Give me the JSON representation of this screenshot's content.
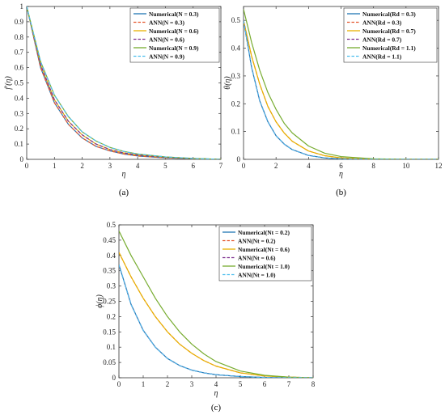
{
  "chart_data": [
    {
      "panel": "(a)",
      "type": "line",
      "xlabel": "η",
      "ylabel": "f′(η)",
      "xlim": [
        0,
        7
      ],
      "ylim": [
        0,
        1
      ],
      "xticks": [
        0,
        1,
        2,
        3,
        4,
        5,
        6,
        7
      ],
      "yticks": [
        0,
        0.1,
        0.2,
        0.3,
        0.4,
        0.5,
        0.6,
        0.7,
        0.8,
        0.9,
        1
      ],
      "legend_position": "top-right",
      "x": [
        0,
        0.5,
        1,
        1.5,
        2,
        2.5,
        3,
        3.5,
        4,
        5,
        6,
        7
      ],
      "series": [
        {
          "name": "Numerical(N = 0.3)",
          "color": "#1f77b4",
          "style": "solid",
          "values": [
            1.0,
            0.6,
            0.37,
            0.23,
            0.14,
            0.085,
            0.055,
            0.035,
            0.022,
            0.01,
            0.004,
            0.0
          ]
        },
        {
          "name": "ANN(N = 0.3)",
          "color": "#e4572e",
          "style": "dashed",
          "values": [
            1.0,
            0.6,
            0.37,
            0.23,
            0.14,
            0.085,
            0.055,
            0.035,
            0.022,
            0.01,
            0.004,
            0.0
          ]
        },
        {
          "name": "Numerical(N = 0.6)",
          "color": "#e8b100",
          "style": "solid",
          "values": [
            1.0,
            0.62,
            0.39,
            0.25,
            0.16,
            0.1,
            0.064,
            0.042,
            0.028,
            0.013,
            0.005,
            0.0
          ]
        },
        {
          "name": "ANN(N = 0.6)",
          "color": "#7e2f8e",
          "style": "dashed",
          "values": [
            1.0,
            0.62,
            0.39,
            0.25,
            0.16,
            0.1,
            0.064,
            0.042,
            0.028,
            0.013,
            0.005,
            0.0
          ]
        },
        {
          "name": "Numerical(N = 0.9)",
          "color": "#77ac30",
          "style": "solid",
          "values": [
            1.0,
            0.64,
            0.42,
            0.28,
            0.18,
            0.12,
            0.078,
            0.052,
            0.035,
            0.016,
            0.006,
            0.0
          ]
        },
        {
          "name": "ANN(N = 0.9)",
          "color": "#4dbeee",
          "style": "dashed",
          "values": [
            1.0,
            0.64,
            0.42,
            0.28,
            0.18,
            0.12,
            0.078,
            0.052,
            0.035,
            0.016,
            0.006,
            0.0
          ]
        }
      ]
    },
    {
      "panel": "(b)",
      "type": "line",
      "xlabel": "η",
      "ylabel": "θ(η)",
      "xlim": [
        0,
        12
      ],
      "ylim": [
        0,
        0.55
      ],
      "xticks": [
        0,
        2,
        4,
        6,
        8,
        10,
        12
      ],
      "yticks": [
        0,
        0.1,
        0.2,
        0.3,
        0.4,
        0.5
      ],
      "legend_position": "top-right",
      "x": [
        0,
        0.5,
        1,
        1.5,
        2,
        2.5,
        3,
        4,
        5,
        6,
        8,
        10,
        12
      ],
      "series": [
        {
          "name": "Numerical(Rd = 0.3)",
          "color": "#1f77b4",
          "style": "solid",
          "values": [
            0.5,
            0.33,
            0.21,
            0.135,
            0.085,
            0.055,
            0.035,
            0.014,
            0.005,
            0.002,
            0.0,
            0.0,
            0.0
          ]
        },
        {
          "name": "ANN(Rd = 0.3)",
          "color": "#e4572e",
          "style": "dashed",
          "values": [
            0.5,
            0.37,
            0.27,
            0.19,
            0.135,
            0.095,
            0.065,
            0.03,
            0.013,
            0.005,
            0.001,
            0.0,
            0.0
          ]
        },
        {
          "name": "Numerical(Rd = 0.7)",
          "color": "#e8b100",
          "style": "solid",
          "values": [
            0.5,
            0.37,
            0.27,
            0.19,
            0.135,
            0.095,
            0.065,
            0.03,
            0.013,
            0.005,
            0.001,
            0.0,
            0.0
          ]
        },
        {
          "name": "ANN(Rd = 0.7)",
          "color": "#7e2f8e",
          "style": "dashed",
          "values": [
            0.5,
            0.33,
            0.21,
            0.135,
            0.085,
            0.055,
            0.035,
            0.014,
            0.005,
            0.002,
            0.0,
            0.0,
            0.0
          ]
        },
        {
          "name": "Numerical(Rd = 1.1)",
          "color": "#77ac30",
          "style": "solid",
          "values": [
            0.54,
            0.42,
            0.32,
            0.24,
            0.18,
            0.13,
            0.095,
            0.048,
            0.022,
            0.01,
            0.002,
            0.0,
            0.0
          ]
        },
        {
          "name": "ANN(Rd = 1.1)",
          "color": "#4dbeee",
          "style": "dashed",
          "values": [
            0.5,
            0.33,
            0.21,
            0.135,
            0.085,
            0.055,
            0.035,
            0.014,
            0.005,
            0.002,
            0.0,
            0.0,
            0.0
          ]
        }
      ]
    },
    {
      "panel": "(c)",
      "type": "line",
      "xlabel": "η",
      "ylabel": "ϕ(η)",
      "xlim": [
        0,
        8
      ],
      "ylim": [
        0,
        0.5
      ],
      "xticks": [
        0,
        1,
        2,
        3,
        4,
        5,
        6,
        7,
        8
      ],
      "yticks": [
        0,
        0.05,
        0.1,
        0.15,
        0.2,
        0.25,
        0.3,
        0.35,
        0.4,
        0.45,
        0.5
      ],
      "legend_position": "top-right",
      "x": [
        0,
        0.5,
        1,
        1.5,
        2,
        2.5,
        3,
        3.5,
        4,
        5,
        6,
        7,
        8
      ],
      "series": [
        {
          "name": "Numerical(Nt = 0.2)",
          "color": "#1f77b4",
          "style": "solid",
          "values": [
            0.37,
            0.24,
            0.155,
            0.1,
            0.063,
            0.04,
            0.025,
            0.016,
            0.01,
            0.004,
            0.001,
            0.0,
            0.0
          ]
        },
        {
          "name": "ANN(Nt = 0.2)",
          "color": "#e4572e",
          "style": "dashed",
          "values": [
            0.41,
            0.33,
            0.26,
            0.2,
            0.15,
            0.11,
            0.08,
            0.056,
            0.038,
            0.016,
            0.006,
            0.002,
            0.0
          ]
        },
        {
          "name": "Numerical(Nt = 0.6)",
          "color": "#e8b100",
          "style": "solid",
          "values": [
            0.41,
            0.33,
            0.26,
            0.2,
            0.15,
            0.11,
            0.08,
            0.056,
            0.038,
            0.016,
            0.006,
            0.002,
            0.0
          ]
        },
        {
          "name": "ANN(Nt = 0.6)",
          "color": "#7e2f8e",
          "style": "dashed",
          "values": [
            0.37,
            0.24,
            0.155,
            0.1,
            0.063,
            0.04,
            0.025,
            0.016,
            0.01,
            0.004,
            0.001,
            0.0,
            0.0
          ]
        },
        {
          "name": "Numerical(Nt = 1.0)",
          "color": "#77ac30",
          "style": "solid",
          "values": [
            0.48,
            0.4,
            0.33,
            0.26,
            0.2,
            0.15,
            0.11,
            0.078,
            0.053,
            0.022,
            0.008,
            0.002,
            0.0
          ]
        },
        {
          "name": "ANN(Nt = 1.0)",
          "color": "#4dbeee",
          "style": "dashed",
          "values": [
            0.37,
            0.24,
            0.155,
            0.1,
            0.063,
            0.04,
            0.025,
            0.016,
            0.01,
            0.004,
            0.001,
            0.0,
            0.0
          ]
        }
      ]
    }
  ]
}
